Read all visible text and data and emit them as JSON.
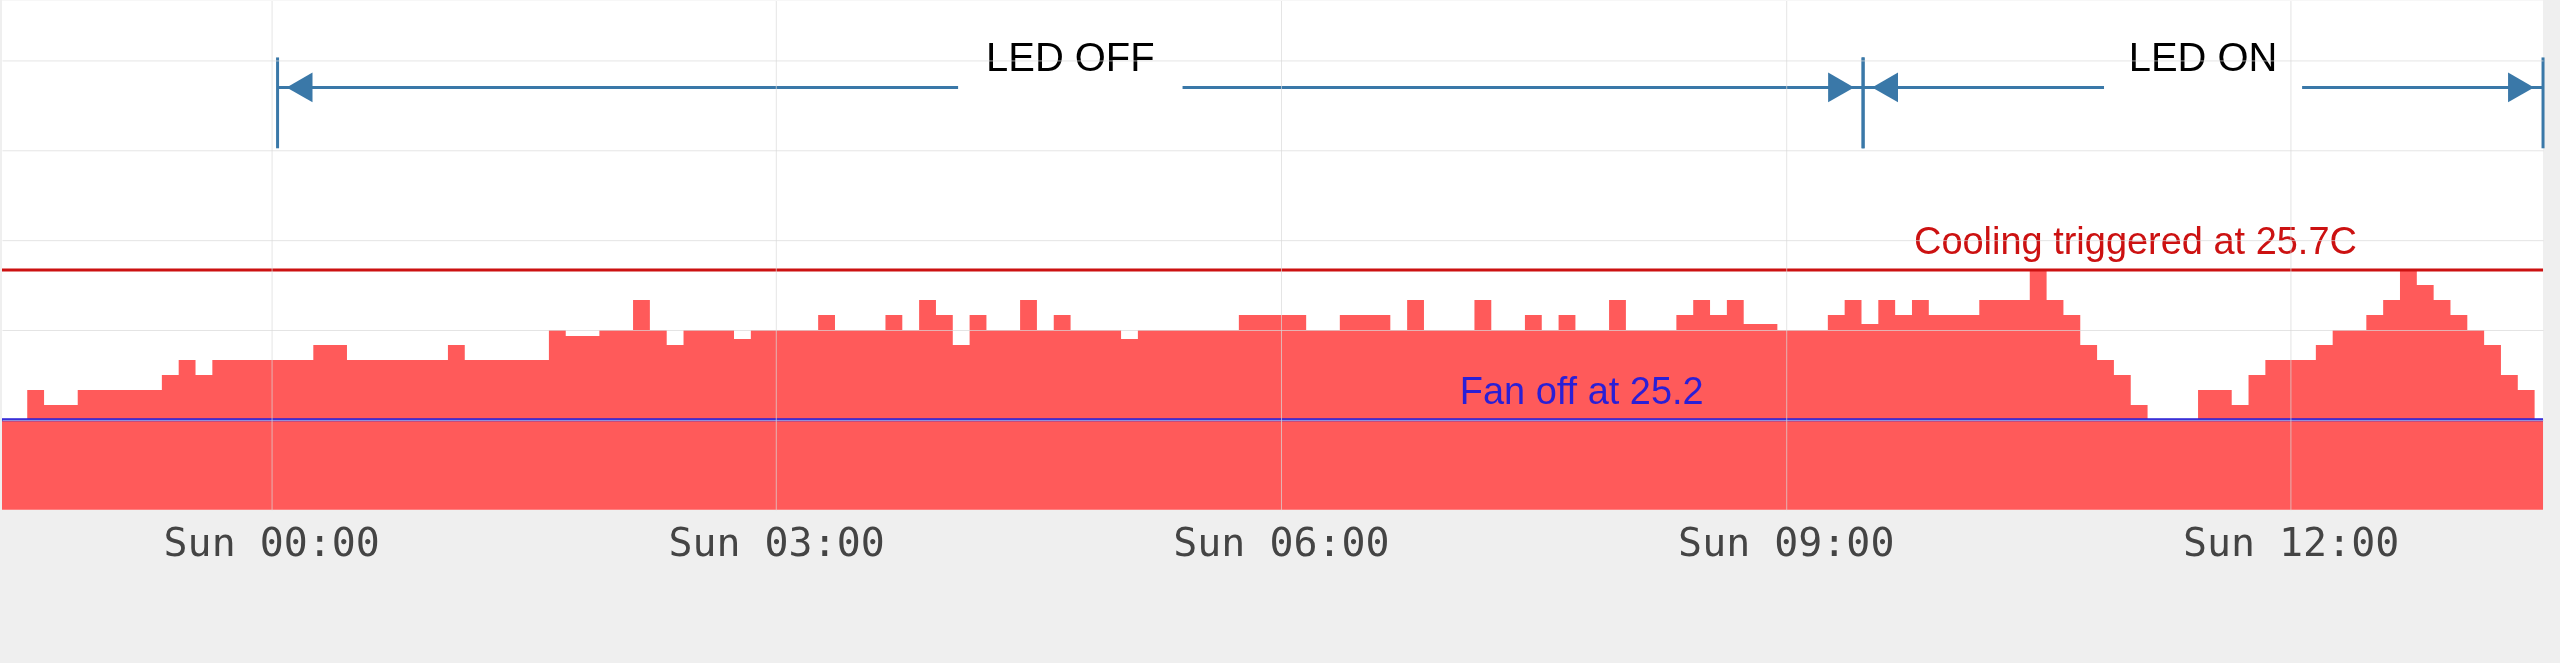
{
  "chart_data": {
    "type": "area",
    "categories": [
      null,
      null,
      null,
      null,
      null,
      null,
      null,
      null,
      null,
      null,
      null,
      null,
      null,
      null,
      null,
      null,
      "Sun 00:00",
      null,
      null,
      null,
      null,
      null,
      null,
      null,
      null,
      null,
      null,
      null,
      null,
      null,
      null,
      null,
      null,
      null,
      null,
      null,
      null,
      null,
      null,
      null,
      null,
      null,
      null,
      null,
      null,
      null,
      "Sun 03:00",
      null,
      null,
      null,
      null,
      null,
      null,
      null,
      null,
      null,
      null,
      null,
      null,
      null,
      null,
      null,
      null,
      null,
      null,
      null,
      null,
      null,
      null,
      null,
      null,
      null,
      null,
      null,
      null,
      null,
      "Sun 06:00",
      null,
      null,
      null,
      null,
      null,
      null,
      null,
      null,
      null,
      null,
      null,
      null,
      null,
      null,
      null,
      null,
      null,
      null,
      null,
      null,
      null,
      null,
      null,
      null,
      null,
      null,
      null,
      null,
      null,
      "Sun 09:00",
      null,
      null,
      null,
      null,
      null,
      null,
      null,
      null,
      null,
      null,
      null,
      null,
      null,
      null,
      null,
      null,
      null,
      null,
      null,
      null,
      null,
      null,
      null,
      null,
      null,
      null,
      null,
      null,
      null,
      "Sun 12:00",
      null,
      null,
      null,
      null,
      null,
      null,
      null,
      null,
      null,
      null,
      null,
      null,
      null,
      null,
      null
    ],
    "series": [
      {
        "color": "#ff5a5a",
        "values": [
          25.2,
          25.2,
          25.3,
          25.25,
          25.25,
          25.3,
          25.3,
          25.3,
          25.3,
          25.3,
          25.35,
          25.4,
          25.35,
          25.4,
          25.4,
          25.4,
          25.4,
          25.4,
          25.4,
          25.45,
          25.45,
          25.4,
          25.4,
          25.4,
          25.4,
          25.4,
          25.4,
          25.45,
          25.4,
          25.4,
          25.4,
          25.4,
          25.4,
          25.5,
          25.48,
          25.48,
          25.5,
          25.5,
          25.6,
          25.5,
          25.45,
          25.5,
          25.5,
          25.5,
          25.47,
          25.5,
          25.5,
          25.5,
          25.5,
          25.55,
          25.5,
          25.5,
          25.5,
          25.55,
          25.5,
          25.6,
          25.55,
          25.45,
          25.55,
          25.5,
          25.5,
          25.6,
          25.5,
          25.55,
          25.5,
          25.5,
          25.5,
          25.47,
          25.5,
          25.5,
          25.5,
          25.5,
          25.5,
          25.5,
          25.55,
          25.55,
          25.55,
          25.55,
          25.5,
          25.5,
          25.55,
          25.55,
          25.55,
          25.5,
          25.6,
          25.5,
          25.5,
          25.5,
          25.6,
          25.5,
          25.5,
          25.55,
          25.5,
          25.55,
          25.5,
          25.5,
          25.6,
          25.5,
          25.5,
          25.5,
          25.55,
          25.6,
          25.55,
          25.6,
          25.52,
          25.52,
          25.5,
          25.5,
          25.5,
          25.55,
          25.6,
          25.52,
          25.6,
          25.55,
          25.6,
          25.55,
          25.55,
          25.55,
          25.6,
          25.6,
          25.6,
          25.7,
          25.6,
          25.55,
          25.45,
          25.4,
          25.35,
          25.25,
          25.2,
          25.2,
          25.2,
          25.3,
          25.3,
          25.25,
          25.35,
          25.4,
          25.4,
          25.4,
          25.45,
          25.5,
          25.5,
          25.55,
          25.6,
          25.7,
          25.65,
          25.6,
          25.55,
          25.5,
          25.45,
          25.35,
          25.3,
          25.2
        ]
      }
    ],
    "ylim": [
      24.9,
      26.6
    ],
    "yticks": [
      {
        "value": 25.2,
        "label": null
      },
      {
        "value": 25.5,
        "label": null
      },
      {
        "value": 25.8,
        "label": null
      },
      {
        "value": 26.1,
        "label": null
      },
      {
        "value": 26.4,
        "label": null
      }
    ],
    "tick_labels": "x",
    "grid": true,
    "ref_lines": [
      {
        "axis": "y",
        "value": 25.2,
        "label": "Fan off at 25.2",
        "color": "#2a1fd6"
      },
      {
        "axis": "y",
        "value": 25.7,
        "label": "Cooling triggered at 25.7C",
        "color": "#cc1111"
      }
    ],
    "annotations": [
      "LED OFF",
      "LED ON"
    ]
  }
}
